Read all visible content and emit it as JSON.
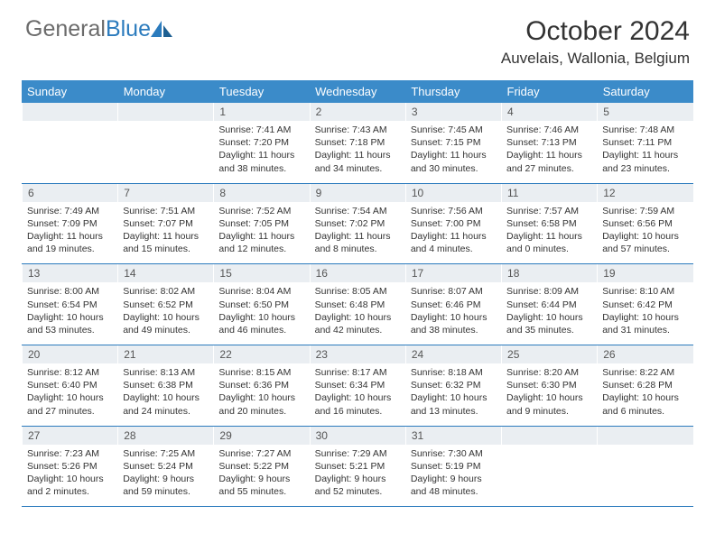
{
  "brand": {
    "part1": "General",
    "part2": "Blue"
  },
  "title": "October 2024",
  "location": "Auvelais, Wallonia, Belgium",
  "colors": {
    "header_bg": "#3b8bc9",
    "border": "#2b7bbd",
    "daynum_bg": "#eaeef2",
    "text": "#333333",
    "logo_gray": "#6b6b6b",
    "logo_blue": "#2b7bbd"
  },
  "weekdays": [
    "Sunday",
    "Monday",
    "Tuesday",
    "Wednesday",
    "Thursday",
    "Friday",
    "Saturday"
  ],
  "weeks": [
    [
      {
        "empty": true
      },
      {
        "empty": true
      },
      {
        "num": "1",
        "sunrise": "7:41 AM",
        "sunset": "7:20 PM",
        "daylight": "11 hours and 38 minutes."
      },
      {
        "num": "2",
        "sunrise": "7:43 AM",
        "sunset": "7:18 PM",
        "daylight": "11 hours and 34 minutes."
      },
      {
        "num": "3",
        "sunrise": "7:45 AM",
        "sunset": "7:15 PM",
        "daylight": "11 hours and 30 minutes."
      },
      {
        "num": "4",
        "sunrise": "7:46 AM",
        "sunset": "7:13 PM",
        "daylight": "11 hours and 27 minutes."
      },
      {
        "num": "5",
        "sunrise": "7:48 AM",
        "sunset": "7:11 PM",
        "daylight": "11 hours and 23 minutes."
      }
    ],
    [
      {
        "num": "6",
        "sunrise": "7:49 AM",
        "sunset": "7:09 PM",
        "daylight": "11 hours and 19 minutes."
      },
      {
        "num": "7",
        "sunrise": "7:51 AM",
        "sunset": "7:07 PM",
        "daylight": "11 hours and 15 minutes."
      },
      {
        "num": "8",
        "sunrise": "7:52 AM",
        "sunset": "7:05 PM",
        "daylight": "11 hours and 12 minutes."
      },
      {
        "num": "9",
        "sunrise": "7:54 AM",
        "sunset": "7:02 PM",
        "daylight": "11 hours and 8 minutes."
      },
      {
        "num": "10",
        "sunrise": "7:56 AM",
        "sunset": "7:00 PM",
        "daylight": "11 hours and 4 minutes."
      },
      {
        "num": "11",
        "sunrise": "7:57 AM",
        "sunset": "6:58 PM",
        "daylight": "11 hours and 0 minutes."
      },
      {
        "num": "12",
        "sunrise": "7:59 AM",
        "sunset": "6:56 PM",
        "daylight": "10 hours and 57 minutes."
      }
    ],
    [
      {
        "num": "13",
        "sunrise": "8:00 AM",
        "sunset": "6:54 PM",
        "daylight": "10 hours and 53 minutes."
      },
      {
        "num": "14",
        "sunrise": "8:02 AM",
        "sunset": "6:52 PM",
        "daylight": "10 hours and 49 minutes."
      },
      {
        "num": "15",
        "sunrise": "8:04 AM",
        "sunset": "6:50 PM",
        "daylight": "10 hours and 46 minutes."
      },
      {
        "num": "16",
        "sunrise": "8:05 AM",
        "sunset": "6:48 PM",
        "daylight": "10 hours and 42 minutes."
      },
      {
        "num": "17",
        "sunrise": "8:07 AM",
        "sunset": "6:46 PM",
        "daylight": "10 hours and 38 minutes."
      },
      {
        "num": "18",
        "sunrise": "8:09 AM",
        "sunset": "6:44 PM",
        "daylight": "10 hours and 35 minutes."
      },
      {
        "num": "19",
        "sunrise": "8:10 AM",
        "sunset": "6:42 PM",
        "daylight": "10 hours and 31 minutes."
      }
    ],
    [
      {
        "num": "20",
        "sunrise": "8:12 AM",
        "sunset": "6:40 PM",
        "daylight": "10 hours and 27 minutes."
      },
      {
        "num": "21",
        "sunrise": "8:13 AM",
        "sunset": "6:38 PM",
        "daylight": "10 hours and 24 minutes."
      },
      {
        "num": "22",
        "sunrise": "8:15 AM",
        "sunset": "6:36 PM",
        "daylight": "10 hours and 20 minutes."
      },
      {
        "num": "23",
        "sunrise": "8:17 AM",
        "sunset": "6:34 PM",
        "daylight": "10 hours and 16 minutes."
      },
      {
        "num": "24",
        "sunrise": "8:18 AM",
        "sunset": "6:32 PM",
        "daylight": "10 hours and 13 minutes."
      },
      {
        "num": "25",
        "sunrise": "8:20 AM",
        "sunset": "6:30 PM",
        "daylight": "10 hours and 9 minutes."
      },
      {
        "num": "26",
        "sunrise": "8:22 AM",
        "sunset": "6:28 PM",
        "daylight": "10 hours and 6 minutes."
      }
    ],
    [
      {
        "num": "27",
        "sunrise": "7:23 AM",
        "sunset": "5:26 PM",
        "daylight": "10 hours and 2 minutes."
      },
      {
        "num": "28",
        "sunrise": "7:25 AM",
        "sunset": "5:24 PM",
        "daylight": "9 hours and 59 minutes."
      },
      {
        "num": "29",
        "sunrise": "7:27 AM",
        "sunset": "5:22 PM",
        "daylight": "9 hours and 55 minutes."
      },
      {
        "num": "30",
        "sunrise": "7:29 AM",
        "sunset": "5:21 PM",
        "daylight": "9 hours and 52 minutes."
      },
      {
        "num": "31",
        "sunrise": "7:30 AM",
        "sunset": "5:19 PM",
        "daylight": "9 hours and 48 minutes."
      },
      {
        "empty": true
      },
      {
        "empty": true
      }
    ]
  ],
  "labels": {
    "sunrise": "Sunrise:",
    "sunset": "Sunset:",
    "daylight": "Daylight:"
  }
}
